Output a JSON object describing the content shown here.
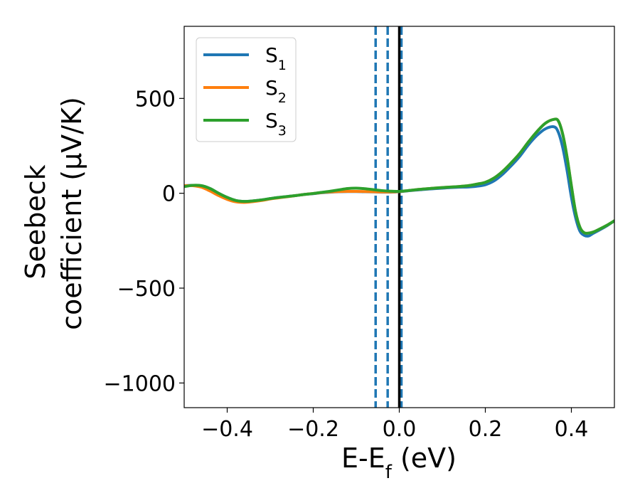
{
  "chart_data": {
    "type": "line",
    "title": "",
    "xlabel": "E-E",
    "xlabel_sub": "f",
    "xlabel_unit": " (eV)",
    "ylabel_line1": "Seebeck",
    "ylabel_line2": "coefficient  (μV/K)",
    "xlim": [
      -0.5,
      0.5
    ],
    "ylim": [
      -1130,
      880
    ],
    "xticks": [
      -0.4,
      -0.2,
      0.0,
      0.2,
      0.4
    ],
    "xtick_labels": [
      "−0.4",
      "−0.2",
      "0.0",
      "0.2",
      "0.4"
    ],
    "yticks": [
      -1000,
      -500,
      0,
      500
    ],
    "ytick_labels": [
      "−1000",
      "−500",
      "0",
      "500"
    ],
    "legend_position": "top-left",
    "vertical_lines": [
      {
        "x": -0.055,
        "style": "dashed",
        "color": "#1f77b4"
      },
      {
        "x": -0.027,
        "style": "dashed",
        "color": "#1f77b4"
      },
      {
        "x": 0.005,
        "style": "dashed",
        "color": "#1f77b4"
      },
      {
        "x": 0.0,
        "style": "solid",
        "color": "#000000"
      }
    ],
    "x": [
      -0.5,
      -0.48,
      -0.46,
      -0.44,
      -0.42,
      -0.4,
      -0.38,
      -0.36,
      -0.34,
      -0.32,
      -0.3,
      -0.28,
      -0.26,
      -0.24,
      -0.22,
      -0.2,
      -0.18,
      -0.16,
      -0.14,
      -0.12,
      -0.1,
      -0.08,
      -0.06,
      -0.04,
      -0.02,
      0.0,
      0.02,
      0.04,
      0.06,
      0.08,
      0.1,
      0.12,
      0.14,
      0.16,
      0.18,
      0.2,
      0.22,
      0.24,
      0.26,
      0.28,
      0.3,
      0.32,
      0.34,
      0.36,
      0.37,
      0.38,
      0.39,
      0.4,
      0.41,
      0.42,
      0.43,
      0.44,
      0.45,
      0.46,
      0.48,
      0.5
    ],
    "series": [
      {
        "name": "S",
        "sub": "1",
        "color": "#1f77b4",
        "values": [
          40,
          42,
          40,
          25,
          0,
          -22,
          -38,
          -43,
          -40,
          -35,
          -28,
          -22,
          -17,
          -12,
          -6,
          -2,
          3,
          6,
          8,
          9,
          9,
          8,
          7,
          6,
          6,
          8,
          13,
          17,
          21,
          24,
          27,
          30,
          32,
          33,
          37,
          45,
          65,
          100,
          145,
          195,
          255,
          305,
          340,
          350,
          320,
          240,
          120,
          -20,
          -130,
          -200,
          -222,
          -225,
          -212,
          -200,
          -175,
          -145
        ]
      },
      {
        "name": "S",
        "sub": "2",
        "color": "#ff7f0e",
        "values": [
          40,
          40,
          32,
          12,
          -12,
          -32,
          -45,
          -48,
          -44,
          -38,
          -30,
          -24,
          -18,
          -12,
          -6,
          -1,
          4,
          7,
          9,
          10,
          10,
          9,
          8,
          7,
          7,
          9,
          14,
          19,
          23,
          27,
          30,
          33,
          36,
          40,
          48,
          58,
          80,
          115,
          160,
          210,
          270,
          325,
          370,
          390,
          380,
          310,
          190,
          40,
          -100,
          -180,
          -208,
          -210,
          -205,
          -195,
          -172,
          -145
        ]
      },
      {
        "name": "S",
        "sub": "3",
        "color": "#2ca02c",
        "values": [
          35,
          42,
          40,
          25,
          0,
          -22,
          -38,
          -43,
          -40,
          -35,
          -28,
          -22,
          -17,
          -12,
          -6,
          -1,
          5,
          11,
          18,
          25,
          27,
          24,
          19,
          14,
          11,
          10,
          14,
          19,
          23,
          27,
          30,
          33,
          36,
          40,
          48,
          58,
          80,
          115,
          160,
          210,
          270,
          325,
          370,
          390,
          380,
          310,
          190,
          40,
          -100,
          -180,
          -208,
          -210,
          -205,
          -195,
          -172,
          -145
        ]
      }
    ]
  }
}
